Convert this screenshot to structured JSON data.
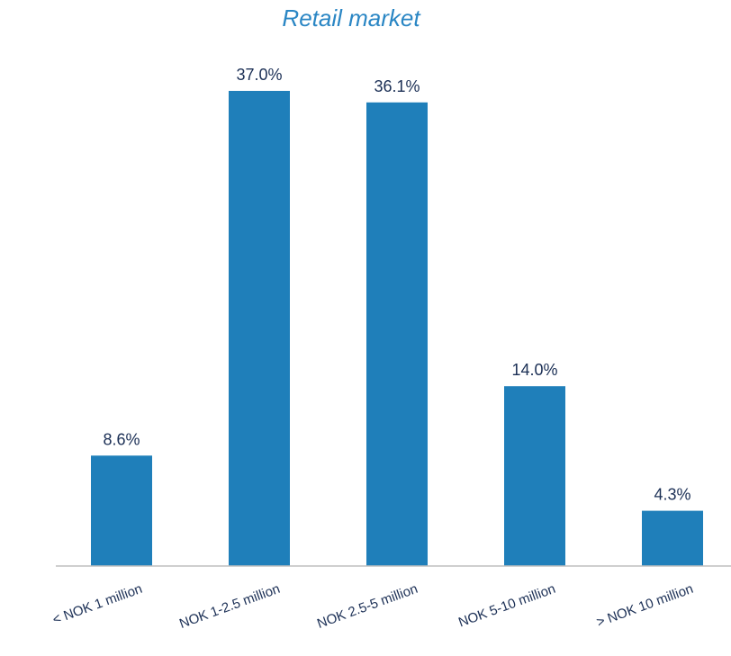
{
  "chart_data": {
    "type": "bar",
    "title": "Retail market",
    "categories": [
      "< NOK 1 million",
      "NOK 1-2.5 million",
      "NOK 2.5-5 million",
      "NOK 5-10 million",
      "> NOK 10 million"
    ],
    "values": [
      8.6,
      37.0,
      36.1,
      14.0,
      4.3
    ],
    "value_labels": [
      "8.6%",
      "37.0%",
      "36.1%",
      "14.0%",
      "4.3%"
    ],
    "xlabel": "",
    "ylabel": "",
    "ylim": [
      0,
      37.0
    ],
    "grid": false,
    "legend": "none"
  },
  "colors": {
    "bar": "#1f7fba",
    "title": "#2a86c4",
    "value_label": "#1b2f55",
    "category_label": "#1b2f55",
    "axis": "#bfbfbf"
  }
}
